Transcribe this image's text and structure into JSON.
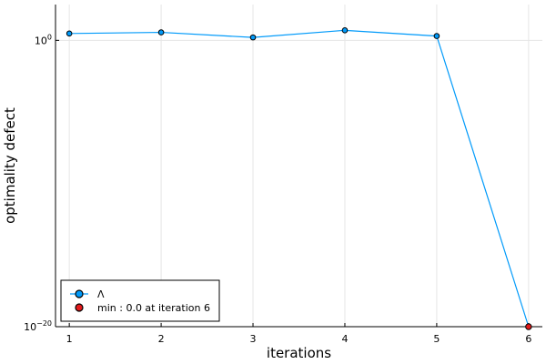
{
  "chart_data": {
    "type": "line",
    "xlabel": "iterations",
    "ylabel": "optimality defect",
    "yscale": "log10",
    "x_ticks": [
      1,
      2,
      3,
      4,
      5,
      6
    ],
    "x_range": [
      0.85,
      6.15
    ],
    "y_ticks": [
      {
        "exp": 0,
        "base": "10",
        "sup": "0"
      },
      {
        "exp": -20,
        "base": "10",
        "sup": "−20"
      }
    ],
    "y_range_log10": [
      -20,
      2.5
    ],
    "grid": true,
    "legend_position": "bottom-left",
    "series": [
      {
        "name": "Λ",
        "color": "#009AFA",
        "marker": "circle",
        "x": [
          1,
          2,
          3,
          4,
          5,
          6
        ],
        "y": [
          3.0,
          3.6,
          1.6,
          5.0,
          2.0,
          1e-20
        ]
      }
    ],
    "min_marker": {
      "label": "min : 0.0 at iteration 6",
      "color": "#E31A1C",
      "x": 6,
      "y": 1e-20
    }
  }
}
